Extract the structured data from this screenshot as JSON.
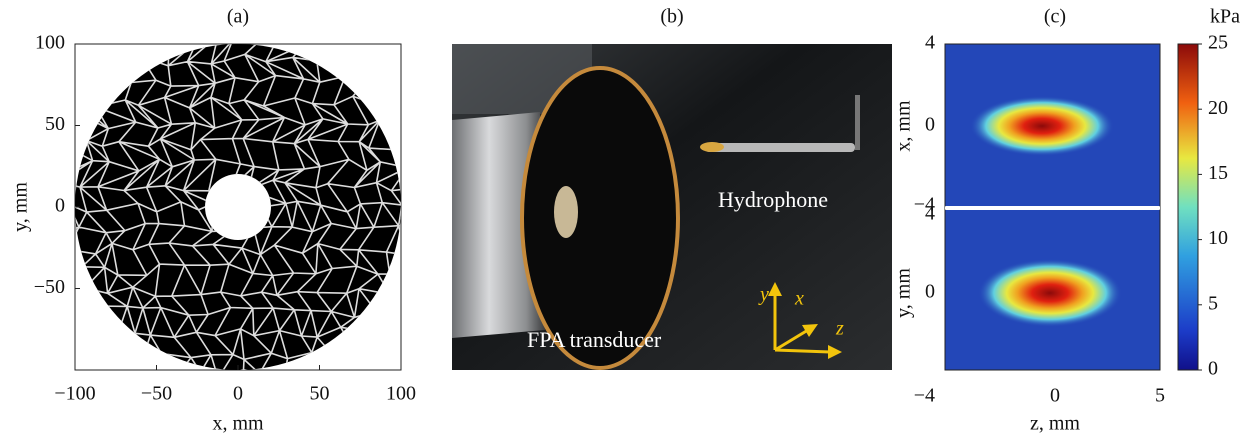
{
  "panels": [
    {
      "label": "(a)",
      "x_label": "x, mm",
      "y_label": "y, mm",
      "x_ticks": [
        "−100",
        "−50",
        "0",
        "50",
        "100"
      ],
      "y_ticks": [
        "100",
        "50",
        "0",
        "−50"
      ]
    },
    {
      "label": "(b)",
      "annotations": [
        "Hydrophone",
        "FPA transducer"
      ],
      "axes": [
        "y",
        "x",
        "z"
      ]
    },
    {
      "label": "(c)",
      "top": {
        "y_label": "x, mm",
        "y_ticks": [
          "4",
          "0",
          "−4"
        ]
      },
      "bottom": {
        "y_label": "y, mm",
        "y_ticks": [
          "4",
          "0",
          "−4"
        ]
      },
      "x_label": "z, mm",
      "x_ticks": [
        "0",
        "5"
      ],
      "colorbar": {
        "unit": "kPa",
        "ticks": [
          "25",
          "20",
          "15",
          "10",
          "5",
          "0"
        ]
      }
    }
  ]
}
